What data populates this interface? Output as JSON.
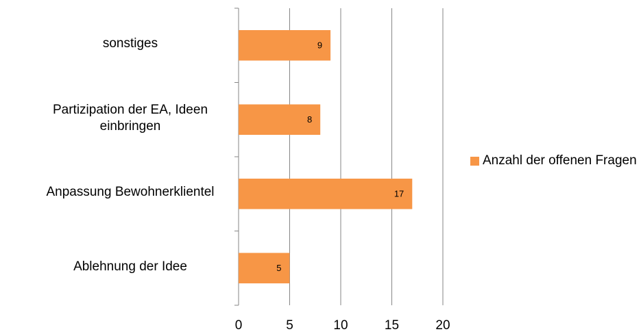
{
  "chart_data": {
    "type": "bar",
    "orientation": "horizontal",
    "categories": [
      "sonstiges",
      "Partizipation der EA, Ideen einbringen",
      "Anpassung Bewohnerklientel",
      "Ablehnung der Idee"
    ],
    "series": [
      {
        "name": "Anzahl der offenen Fragen",
        "color": "#f79646",
        "values": [
          9,
          8,
          17,
          5
        ]
      }
    ],
    "xlim": [
      0,
      20
    ],
    "xticks": [
      0,
      5,
      10,
      15,
      20
    ],
    "grid": true,
    "legend": "right"
  }
}
